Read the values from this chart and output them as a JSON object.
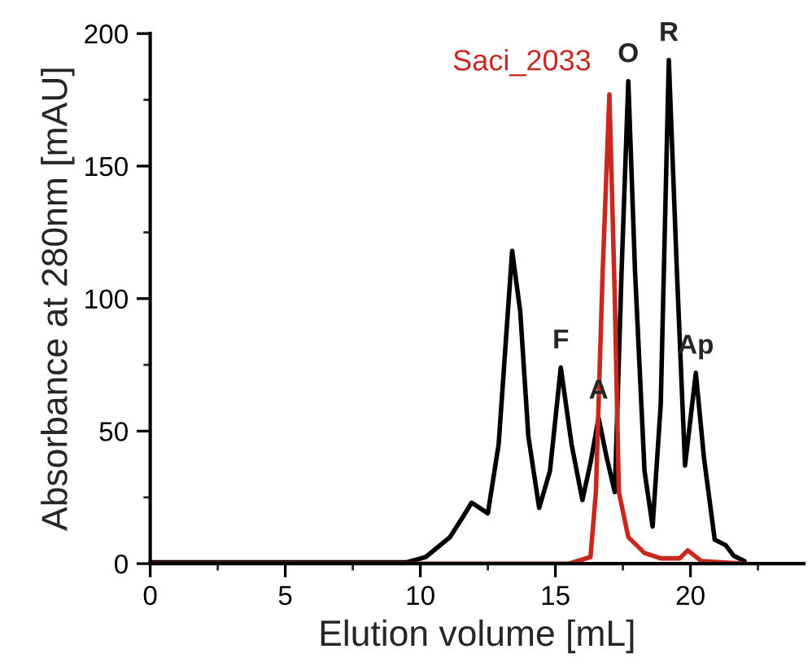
{
  "chart_data": {
    "type": "line",
    "xlabel": "Elution volume [mL]",
    "ylabel": "Absorbance at 280nm [mAU]",
    "xlim": [
      0,
      24.2
    ],
    "ylim": [
      0,
      200
    ],
    "xticks": [
      0,
      5,
      10,
      15,
      20
    ],
    "yticks": [
      0,
      50,
      100,
      150,
      200
    ],
    "grid": false,
    "legend": false,
    "marker": "none",
    "line_style": "solid",
    "series": [
      {
        "color": "#000000",
        "x": [
          0,
          9.5,
          10.2,
          11.1,
          11.6,
          11.9,
          12.5,
          12.9,
          13.2,
          13.4,
          13.7,
          14.0,
          14.4,
          14.8,
          15.2,
          15.6,
          16.0,
          16.3,
          16.6,
          16.9,
          17.2,
          17.45,
          17.7,
          17.95,
          18.3,
          18.6,
          18.9,
          19.2,
          19.5,
          19.8,
          20.2,
          20.5,
          20.9,
          21.3,
          21.6,
          22.0
        ],
        "values": [
          0.5,
          0.5,
          2.5,
          10,
          18,
          23,
          19,
          45,
          89,
          118,
          95,
          48,
          21,
          35,
          74,
          45,
          24,
          38,
          55,
          40,
          27,
          110,
          182,
          110,
          35,
          14,
          60,
          190,
          110,
          37,
          72,
          40,
          9,
          7,
          3,
          1
        ]
      },
      {
        "name": "Saci_2033",
        "color": "#c8281e",
        "x": [
          0,
          15.5,
          16.3,
          16.5,
          16.75,
          17.0,
          17.2,
          17.35,
          17.7,
          18.3,
          18.9,
          19.6,
          19.9,
          20.4,
          22.0
        ],
        "values": [
          0,
          0,
          2.5,
          27,
          110,
          177,
          100,
          27,
          10,
          4,
          2,
          2,
          5,
          1,
          0
        ]
      }
    ],
    "annotations": [
      {
        "text": "F",
        "x": 15.2,
        "y": 74
      },
      {
        "text": "A",
        "x": 16.6,
        "y": 55
      },
      {
        "text": "O",
        "x": 17.7,
        "y": 182
      },
      {
        "text": "R",
        "x": 19.2,
        "y": 190
      },
      {
        "text": "Ap",
        "x": 20.2,
        "y": 72
      }
    ]
  }
}
